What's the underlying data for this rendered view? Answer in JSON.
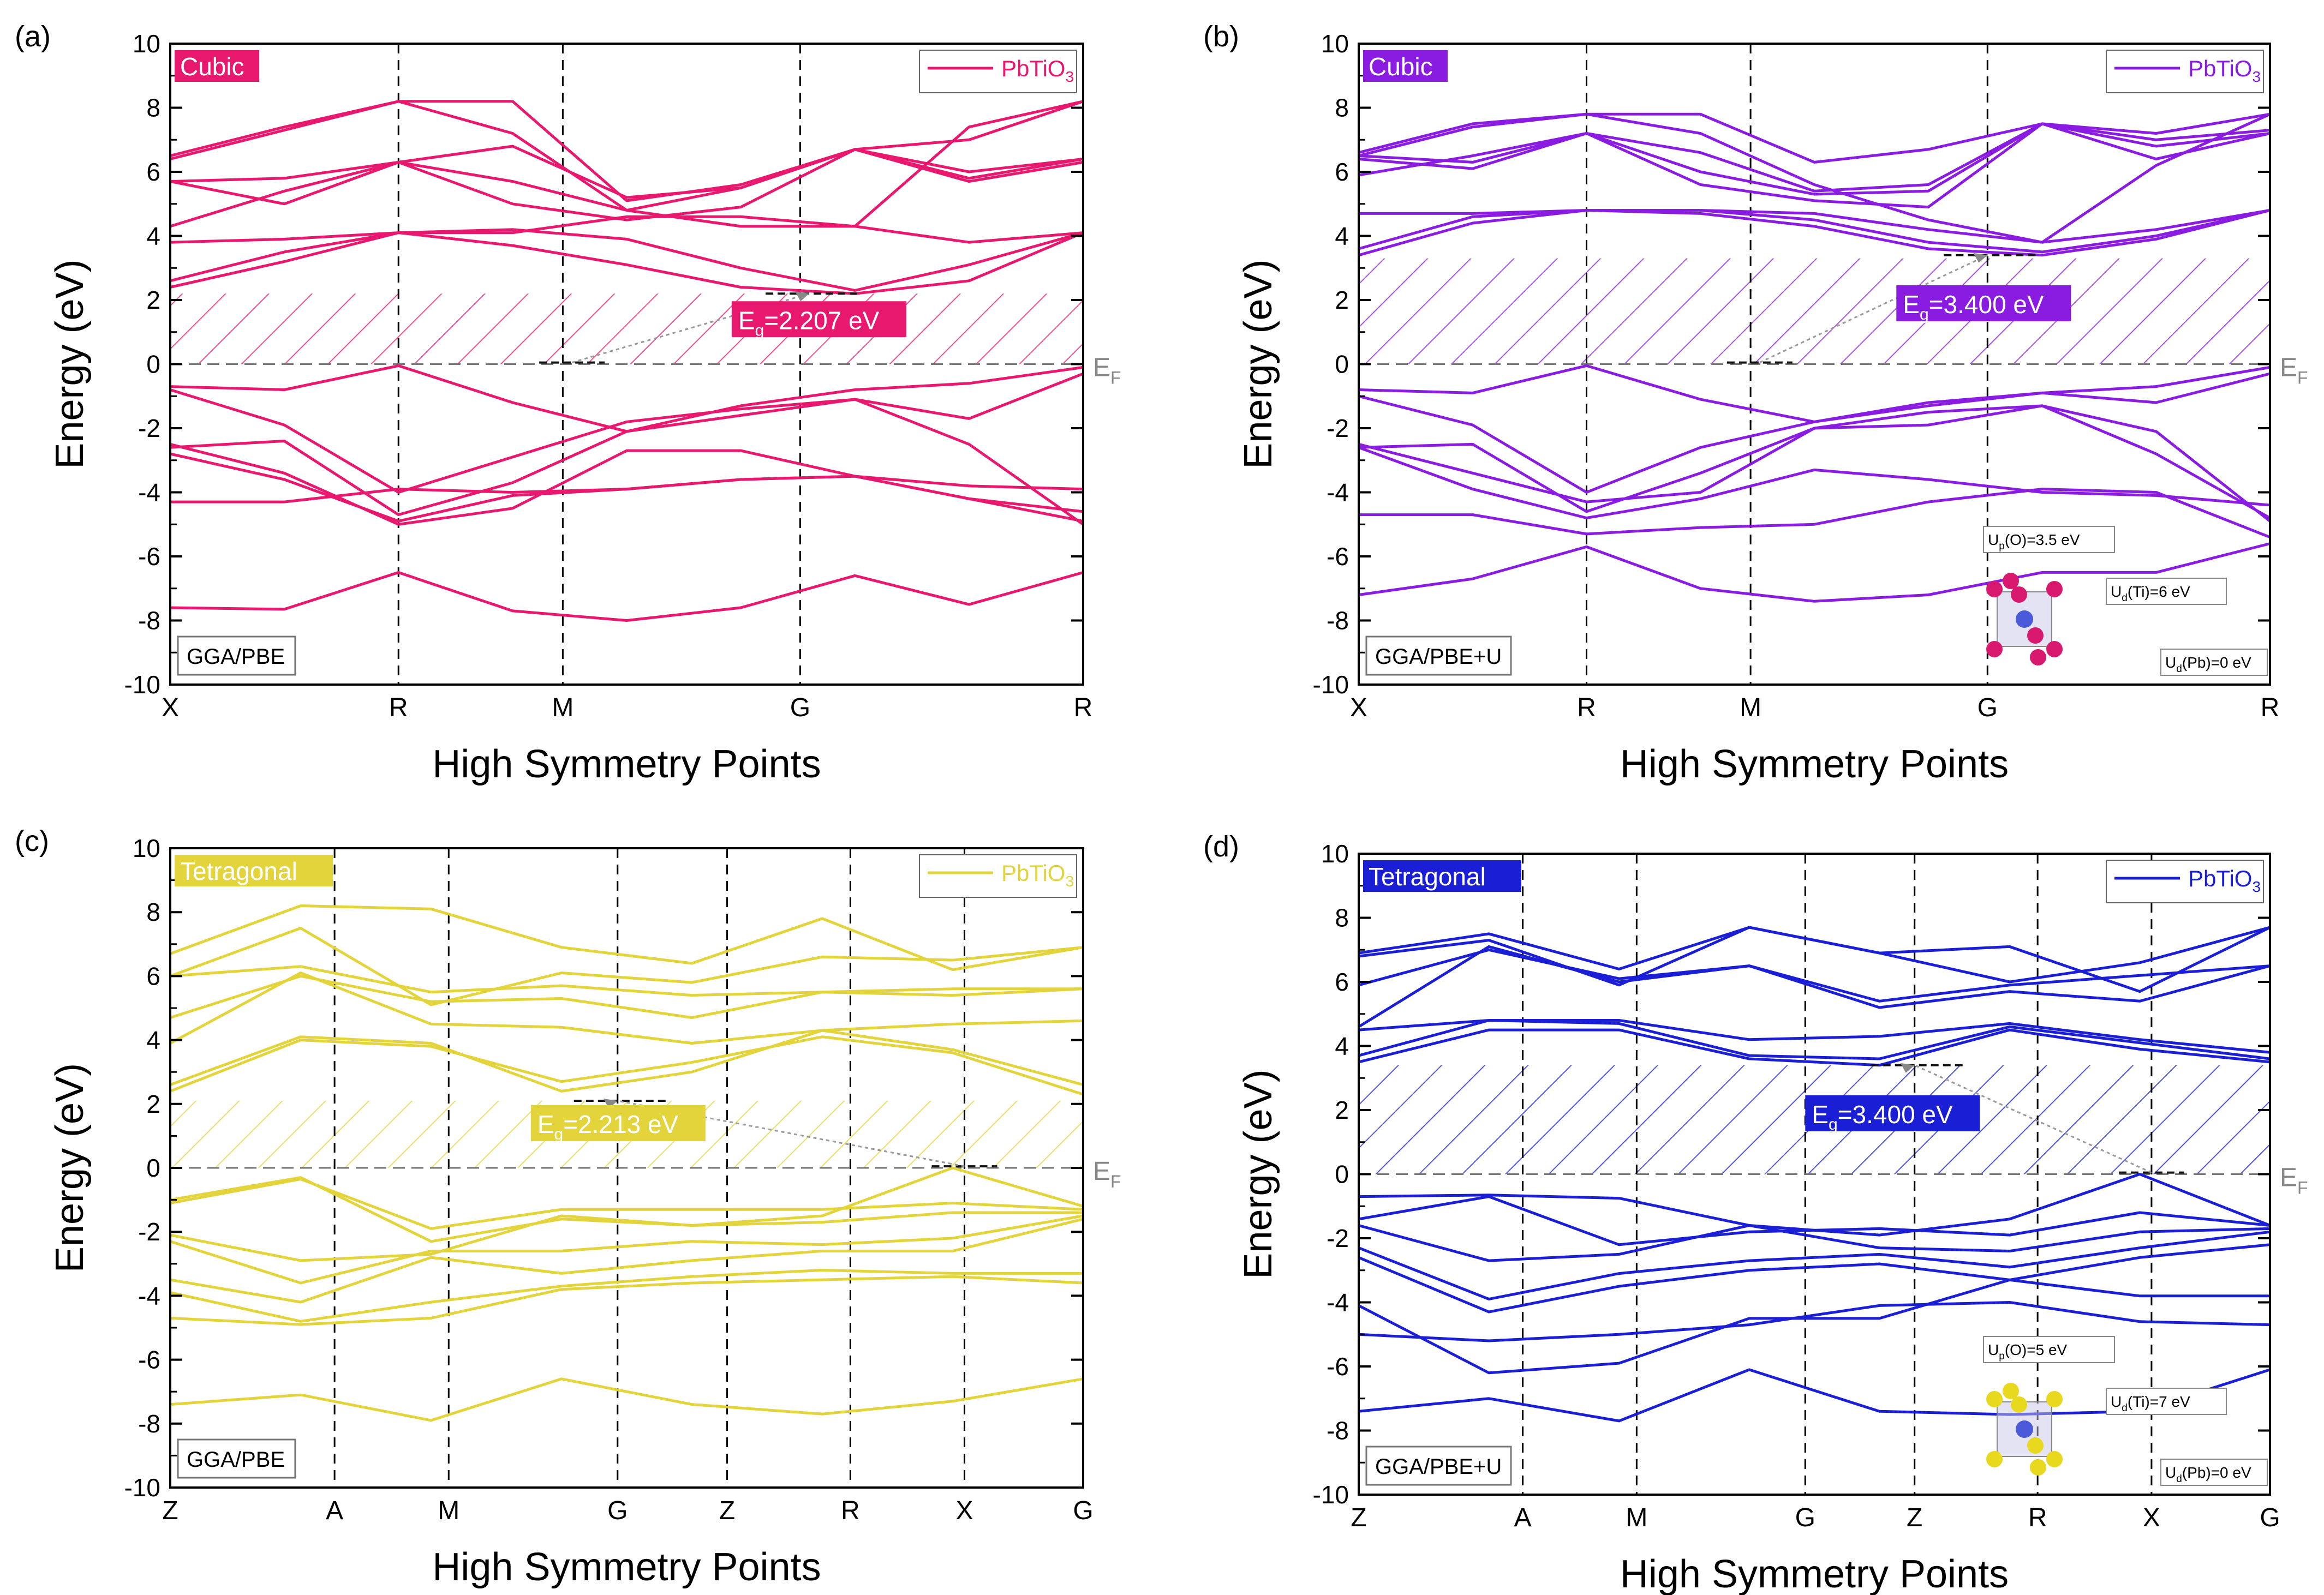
{
  "chart_data": [
    {
      "type": "line",
      "panel_label": "(a)",
      "phase": "Cubic",
      "method": "GGA/PBE",
      "legend": "PbTiO",
      "legend_sub": "3",
      "gap_text": "=2.207 eV",
      "gap_value_eV": 2.207,
      "gap_top_eV": 2.2,
      "vbm_x": 0.44,
      "cbm_x": 0.7,
      "vbm_y": 0.05,
      "cbm_y": 2.2,
      "xlabel": "High Symmetry Points",
      "ylabel": "Energy (eV)",
      "ylim": [
        -10,
        10
      ],
      "yticks": [
        10,
        8,
        6,
        4,
        2,
        0,
        -2,
        -4,
        -6,
        -8,
        -10
      ],
      "kpoints": [
        {
          "label": "X",
          "pos": 0
        },
        {
          "label": "R",
          "pos": 0.25
        },
        {
          "label": "M",
          "pos": 0.43
        },
        {
          "label": "G",
          "pos": 0.69
        },
        {
          "label": "R",
          "pos": 1.0
        }
      ],
      "ef_label": "E",
      "ef_sub": "F",
      "color": "#e8186f",
      "bands": [
        [
          -7.6,
          -7.65,
          -6.5,
          -7.7,
          -8.0,
          -7.6,
          -6.6,
          -7.5,
          -6.5
        ],
        [
          -4.3,
          -4.3,
          -3.9,
          -4.0,
          -3.9,
          -3.6,
          -3.5,
          -3.8,
          -3.9
        ],
        [
          -2.8,
          -3.6,
          -4.9,
          -4.1,
          -3.9,
          -3.6,
          -3.5,
          -4.2,
          -4.6
        ],
        [
          -2.5,
          -3.4,
          -5.0,
          -4.5,
          -2.7,
          -2.7,
          -3.5,
          -4.2,
          -4.9
        ],
        [
          -2.6,
          -2.4,
          -4.7,
          -3.7,
          -2.1,
          -1.6,
          -1.1,
          -2.5,
          -5.0
        ],
        [
          -0.8,
          -1.9,
          -4.0,
          -2.9,
          -1.8,
          -1.4,
          -1.1,
          -1.7,
          -0.3
        ],
        [
          -0.7,
          -0.8,
          -0.05,
          -1.2,
          -2.1,
          -1.3,
          -0.8,
          -0.6,
          -0.1
        ],
        [
          2.4,
          3.2,
          4.1,
          3.7,
          3.1,
          2.4,
          2.2,
          2.6,
          4.1
        ],
        [
          2.6,
          3.5,
          4.1,
          4.2,
          3.9,
          3.0,
          2.3,
          3.1,
          4.1
        ],
        [
          3.8,
          3.9,
          4.1,
          4.1,
          4.6,
          4.6,
          4.3,
          3.8,
          4.1
        ],
        [
          4.3,
          5.4,
          6.3,
          5.0,
          4.5,
          4.9,
          6.7,
          5.7,
          6.3
        ],
        [
          5.7,
          5.0,
          6.3,
          5.7,
          4.8,
          5.5,
          6.7,
          5.8,
          6.4
        ],
        [
          5.7,
          5.8,
          6.3,
          6.8,
          5.2,
          5.5,
          6.7,
          6.0,
          6.4
        ],
        [
          6.4,
          7.3,
          8.2,
          7.2,
          4.8,
          4.3,
          4.3,
          7.4,
          8.2
        ],
        [
          6.5,
          7.4,
          8.2,
          8.2,
          5.1,
          5.6,
          6.7,
          7.0,
          8.2
        ]
      ]
    },
    {
      "type": "line",
      "panel_label": "(b)",
      "phase": "Cubic",
      "method": "GGA/PBE+U",
      "legend": "PbTiO",
      "legend_sub": "3",
      "gap_text": "=3.400 eV",
      "gap_value_eV": 3.4,
      "gap_top_eV": 3.3,
      "vbm_x": 0.44,
      "cbm_x": 0.69,
      "vbm_y": 0.05,
      "cbm_y": 3.4,
      "xlabel": "High Symmetry Points",
      "ylabel": "Energy (eV)",
      "ylim": [
        -10,
        10
      ],
      "yticks": [
        10,
        8,
        6,
        4,
        2,
        0,
        -2,
        -4,
        -6,
        -8,
        -10
      ],
      "kpoints": [
        {
          "label": "X",
          "pos": 0
        },
        {
          "label": "R",
          "pos": 0.25
        },
        {
          "label": "M",
          "pos": 0.43
        },
        {
          "label": "G",
          "pos": 0.69
        },
        {
          "label": "R",
          "pos": 1.0
        }
      ],
      "ef_label": "E",
      "ef_sub": "F",
      "color": "#8a1be0",
      "inset": {
        "up": "=3.5 eV",
        "ud_ti": "=6 eV",
        "ud_pb": "=0 eV",
        "atom1": "#d8196f",
        "atom2": "#d8196f"
      },
      "bands": [
        [
          -7.2,
          -6.7,
          -5.7,
          -7.0,
          -7.4,
          -7.2,
          -6.5,
          -6.5,
          -5.6
        ],
        [
          -4.7,
          -4.7,
          -5.3,
          -5.1,
          -5.0,
          -4.3,
          -3.9,
          -4.0,
          -5.4
        ],
        [
          -2.6,
          -3.9,
          -4.8,
          -4.2,
          -3.3,
          -3.6,
          -4.0,
          -4.1,
          -4.4
        ],
        [
          -2.5,
          -3.4,
          -4.3,
          -4.0,
          -2.0,
          -1.9,
          -1.3,
          -2.8,
          -4.8
        ],
        [
          -2.6,
          -2.5,
          -4.6,
          -3.4,
          -2.0,
          -1.5,
          -1.3,
          -2.1,
          -4.9
        ],
        [
          -1.0,
          -1.9,
          -4.0,
          -2.6,
          -1.8,
          -1.2,
          -0.9,
          -1.2,
          -0.3
        ],
        [
          -0.8,
          -0.9,
          -0.05,
          -1.1,
          -1.8,
          -1.3,
          -0.9,
          -0.7,
          -0.1
        ],
        [
          3.4,
          4.4,
          4.8,
          4.7,
          4.3,
          3.6,
          3.4,
          3.9,
          4.8
        ],
        [
          3.6,
          4.6,
          4.8,
          4.8,
          4.5,
          3.8,
          3.5,
          4.0,
          4.8
        ],
        [
          4.7,
          4.7,
          4.8,
          4.8,
          4.7,
          4.2,
          3.8,
          4.2,
          4.8
        ],
        [
          5.9,
          6.5,
          7.2,
          5.6,
          5.1,
          4.9,
          7.5,
          6.4,
          7.2
        ],
        [
          6.4,
          6.1,
          7.2,
          6.0,
          5.3,
          5.4,
          7.5,
          6.8,
          7.2
        ],
        [
          6.5,
          6.3,
          7.2,
          6.6,
          5.4,
          5.6,
          7.5,
          7.0,
          7.3
        ],
        [
          6.5,
          7.4,
          7.8,
          7.2,
          5.6,
          4.5,
          3.8,
          6.2,
          7.8
        ],
        [
          6.6,
          7.5,
          7.8,
          7.8,
          6.3,
          6.7,
          7.5,
          7.2,
          7.8
        ]
      ]
    },
    {
      "type": "line",
      "panel_label": "(c)",
      "phase": "Tetragonal",
      "method": "GGA/PBE",
      "legend": "PbTiO",
      "legend_sub": "3",
      "gap_text": "=2.213 eV",
      "gap_value_eV": 2.213,
      "gap_top_eV": 2.1,
      "vbm_x": 0.87,
      "cbm_x": 0.49,
      "vbm_y": 0.05,
      "cbm_y": 2.1,
      "xlabel": "High Symmetry Points",
      "ylabel": "Energy (eV)",
      "ylim": [
        -10,
        10
      ],
      "yticks": [
        10,
        8,
        6,
        4,
        2,
        0,
        -2,
        -4,
        -6,
        -8,
        -10
      ],
      "kpoints": [
        {
          "label": "Z",
          "pos": 0
        },
        {
          "label": "A",
          "pos": 0.18
        },
        {
          "label": "M",
          "pos": 0.305
        },
        {
          "label": "G",
          "pos": 0.49
        },
        {
          "label": "Z",
          "pos": 0.61
        },
        {
          "label": "R",
          "pos": 0.745
        },
        {
          "label": "X",
          "pos": 0.87
        },
        {
          "label": "G",
          "pos": 1.0
        }
      ],
      "ef_label": "E",
      "ef_sub": "F",
      "color": "#e3d43c",
      "bands": [
        [
          -7.4,
          -7.1,
          -7.9,
          -6.6,
          -7.4,
          -7.7,
          -7.3,
          -6.6
        ],
        [
          -4.7,
          -4.9,
          -4.7,
          -3.8,
          -3.6,
          -3.5,
          -3.4,
          -3.6
        ],
        [
          -3.9,
          -4.8,
          -4.2,
          -3.7,
          -3.4,
          -3.2,
          -3.3,
          -3.3
        ],
        [
          -3.5,
          -4.2,
          -2.8,
          -3.3,
          -2.9,
          -2.6,
          -2.6,
          -1.6
        ],
        [
          -2.3,
          -3.6,
          -2.6,
          -2.6,
          -2.3,
          -2.4,
          -2.2,
          -1.5
        ],
        [
          -2.1,
          -2.9,
          -2.7,
          -1.5,
          -1.8,
          -1.7,
          -1.4,
          -1.4
        ],
        [
          -1.1,
          -0.35,
          -1.9,
          -1.3,
          -1.3,
          -1.3,
          -1.1,
          -1.3
        ],
        [
          -1.0,
          -0.3,
          -2.3,
          -1.6,
          -1.8,
          -1.5,
          0.0,
          -1.2
        ],
        [
          2.4,
          4.0,
          3.8,
          2.7,
          3.3,
          4.1,
          3.6,
          2.3
        ],
        [
          2.6,
          4.1,
          3.9,
          2.4,
          3.0,
          4.3,
          3.7,
          2.6
        ],
        [
          3.9,
          6.1,
          4.5,
          4.4,
          3.9,
          4.3,
          4.5,
          4.6
        ],
        [
          4.7,
          6.0,
          5.2,
          5.3,
          4.7,
          5.5,
          5.4,
          5.6
        ],
        [
          6.0,
          6.3,
          5.5,
          5.7,
          5.4,
          5.5,
          5.6,
          5.6
        ],
        [
          6.0,
          7.5,
          5.1,
          6.1,
          5.8,
          6.6,
          6.5,
          6.9
        ],
        [
          6.7,
          8.2,
          8.1,
          6.9,
          6.4,
          7.8,
          6.2,
          6.9
        ]
      ]
    },
    {
      "type": "line",
      "panel_label": "(d)",
      "phase": "Tetragonal",
      "method": "GGA/PBE+U",
      "legend": "PbTiO",
      "legend_sub": "3",
      "gap_text": "=3.400 eV",
      "gap_value_eV": 3.4,
      "gap_top_eV": 3.4,
      "vbm_x": 0.87,
      "cbm_x": 0.61,
      "vbm_y": 0.05,
      "cbm_y": 3.4,
      "xlabel": "High Symmetry Points",
      "ylabel": "Energy (eV)",
      "ylim": [
        -10,
        10
      ],
      "yticks": [
        10,
        8,
        6,
        4,
        2,
        0,
        -2,
        -4,
        -6,
        -8,
        -10
      ],
      "kpoints": [
        {
          "label": "Z",
          "pos": 0
        },
        {
          "label": "A",
          "pos": 0.18
        },
        {
          "label": "M",
          "pos": 0.305
        },
        {
          "label": "G",
          "pos": 0.49
        },
        {
          "label": "Z",
          "pos": 0.61
        },
        {
          "label": "R",
          "pos": 0.745
        },
        {
          "label": "X",
          "pos": 0.87
        },
        {
          "label": "G",
          "pos": 1.0
        }
      ],
      "ef_label": "E",
      "ef_sub": "F",
      "color": "#1a1fd6",
      "inset": {
        "up": "=5 eV",
        "ud_ti": "=7 eV",
        "ud_pb": "=0 eV",
        "atom1": "#e8d81e",
        "atom2": "#e8d81e"
      },
      "bands": [
        [
          -7.4,
          -7.0,
          -7.7,
          -6.1,
          -7.4,
          -7.5,
          -7.4,
          -6.1
        ],
        [
          -5.0,
          -5.2,
          -5.0,
          -4.7,
          -4.1,
          -4.0,
          -4.6,
          -4.7
        ],
        [
          -4.1,
          -6.2,
          -5.9,
          -4.5,
          -4.5,
          -3.3,
          -3.8,
          -3.8
        ],
        [
          -2.6,
          -4.3,
          -3.5,
          -3.0,
          -2.8,
          -3.3,
          -2.6,
          -2.2
        ],
        [
          -2.3,
          -3.9,
          -3.1,
          -2.7,
          -2.5,
          -2.9,
          -2.3,
          -1.8
        ],
        [
          -1.6,
          -2.7,
          -2.5,
          -1.6,
          -2.3,
          -2.4,
          -1.8,
          -1.7
        ],
        [
          -1.4,
          -0.7,
          -2.2,
          -1.8,
          -1.7,
          -1.9,
          -1.2,
          -1.6
        ],
        [
          -0.7,
          -0.65,
          -0.75,
          -1.6,
          -1.9,
          -1.4,
          0.0,
          -1.6
        ],
        [
          3.5,
          4.5,
          4.5,
          3.6,
          3.4,
          4.5,
          3.9,
          3.5
        ],
        [
          3.7,
          4.8,
          4.7,
          3.7,
          3.6,
          4.6,
          4.1,
          3.6
        ],
        [
          4.5,
          4.8,
          4.8,
          4.2,
          4.3,
          4.7,
          4.2,
          3.8
        ],
        [
          4.6,
          7.1,
          6.0,
          6.5,
          5.2,
          5.7,
          5.4,
          6.5
        ],
        [
          5.9,
          7.0,
          6.1,
          6.5,
          5.4,
          5.9,
          6.2,
          6.5
        ],
        [
          6.8,
          7.3,
          5.9,
          7.7,
          6.9,
          6.0,
          6.6,
          7.7
        ],
        [
          6.9,
          7.5,
          6.4,
          7.7,
          6.9,
          7.1,
          5.7,
          7.7
        ]
      ]
    }
  ]
}
